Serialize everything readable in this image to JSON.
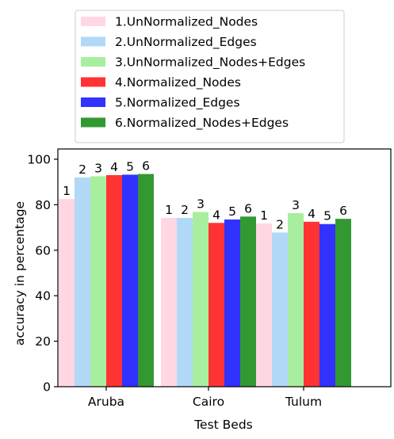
{
  "chart_data": {
    "type": "bar",
    "title": "",
    "xlabel": "Test Beds",
    "ylabel": "accuracy in percentage",
    "categories": [
      "Aruba",
      "Cairo",
      "Tulum"
    ],
    "ylim": [
      0,
      100
    ],
    "yticks": [
      "0",
      "20",
      "40",
      "60",
      "80",
      "100"
    ],
    "grid": false,
    "legend_position": "top",
    "series": [
      {
        "name": "1.UnNormalized_Nodes",
        "bar_label": "1",
        "color": "#ffd7e2",
        "values": [
          82.5,
          74.2,
          71.8
        ]
      },
      {
        "name": "2.UnNormalized_Edges",
        "bar_label": "2",
        "color": "#b2d8f8",
        "values": [
          92.0,
          74.2,
          67.8
        ]
      },
      {
        "name": "3.UnNormalized_Nodes+Edges",
        "bar_label": "3",
        "color": "#a8ee9f",
        "values": [
          92.5,
          76.8,
          76.3
        ]
      },
      {
        "name": "4.Normalized_Nodes",
        "bar_label": "4",
        "color": "#ff3333",
        "values": [
          93.0,
          72.0,
          72.5
        ]
      },
      {
        "name": "5.Normalized_Edges",
        "bar_label": "5",
        "color": "#3232ff",
        "values": [
          93.2,
          73.5,
          71.5
        ]
      },
      {
        "name": "6.Normalized_Nodes+Edges",
        "bar_label": "6",
        "color": "#329932",
        "values": [
          93.5,
          74.8,
          73.8
        ]
      }
    ]
  }
}
